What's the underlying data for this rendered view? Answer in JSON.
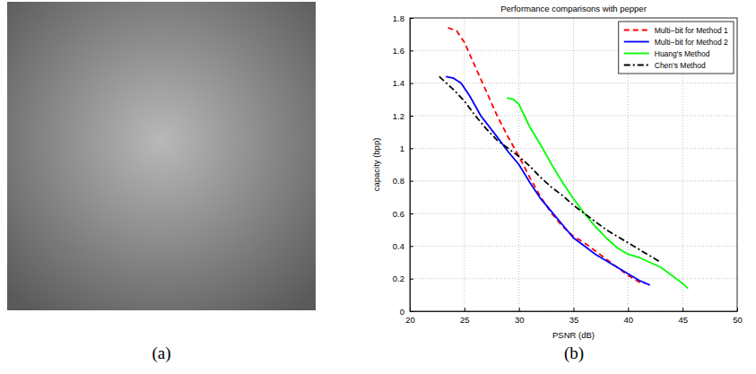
{
  "panel_labels": [
    "(a)",
    "(b)"
  ],
  "chart_data": {
    "type": "line",
    "title": "Performance comparisons with pepper",
    "x_label": "PSNR (dB)",
    "y_label": "capacity (bpp)",
    "xlim": [
      20,
      50
    ],
    "xticks": [
      20,
      25,
      30,
      35,
      40,
      45,
      50
    ],
    "ylim": [
      0,
      1.8
    ],
    "yticks": [
      0,
      0.2,
      0.4,
      0.6,
      0.8,
      1,
      1.2,
      1.4,
      1.6,
      1.8
    ],
    "grid": true,
    "legend": "upper right",
    "series": [
      {
        "name": "Multi−bit for Method 1",
        "color": "#ff0000",
        "line_style": "dashed",
        "x": [
          23.5,
          24.3,
          25,
          26,
          27,
          28,
          29,
          30,
          31,
          32,
          33,
          34,
          35,
          36,
          37,
          38,
          39,
          40,
          41,
          41.5
        ],
        "values": [
          1.74,
          1.72,
          1.65,
          1.5,
          1.35,
          1.2,
          1.07,
          0.95,
          0.82,
          0.7,
          0.6,
          0.52,
          0.46,
          0.42,
          0.37,
          0.32,
          0.27,
          0.22,
          0.18,
          0.17
        ]
      },
      {
        "name": "Multi−bit for Method 2",
        "color": "#0000ff",
        "line_style": "solid",
        "x": [
          23.3,
          24,
          24.7,
          25.5,
          26.5,
          28,
          29,
          30,
          31,
          32,
          33,
          34,
          35,
          36,
          37,
          38,
          39,
          40,
          41,
          42
        ],
        "values": [
          1.44,
          1.43,
          1.4,
          1.32,
          1.2,
          1.07,
          0.98,
          0.9,
          0.79,
          0.69,
          0.61,
          0.53,
          0.45,
          0.4,
          0.35,
          0.31,
          0.27,
          0.23,
          0.19,
          0.16
        ]
      },
      {
        "name": "Huang's Method",
        "color": "#00ff00",
        "line_style": "solid",
        "x": [
          28.9,
          29.5,
          30,
          30.5,
          31,
          32,
          33,
          34,
          35,
          36,
          37,
          38,
          39,
          40,
          41,
          42,
          43,
          44,
          45,
          45.5
        ],
        "values": [
          1.31,
          1.3,
          1.27,
          1.2,
          1.13,
          1.02,
          0.9,
          0.79,
          0.69,
          0.6,
          0.52,
          0.45,
          0.39,
          0.35,
          0.33,
          0.3,
          0.27,
          0.22,
          0.17,
          0.14
        ]
      },
      {
        "name": "Chen's Method",
        "color": "#000000",
        "line_style": "dashdot",
        "x": [
          22.7,
          24,
          25,
          26,
          27,
          28,
          29,
          30,
          31,
          32,
          33,
          34,
          35,
          36,
          37,
          38,
          39,
          40,
          41,
          42,
          43
        ],
        "values": [
          1.44,
          1.36,
          1.29,
          1.2,
          1.12,
          1.05,
          1.0,
          0.95,
          0.89,
          0.82,
          0.76,
          0.71,
          0.65,
          0.6,
          0.55,
          0.5,
          0.46,
          0.42,
          0.38,
          0.34,
          0.3
        ]
      }
    ]
  }
}
